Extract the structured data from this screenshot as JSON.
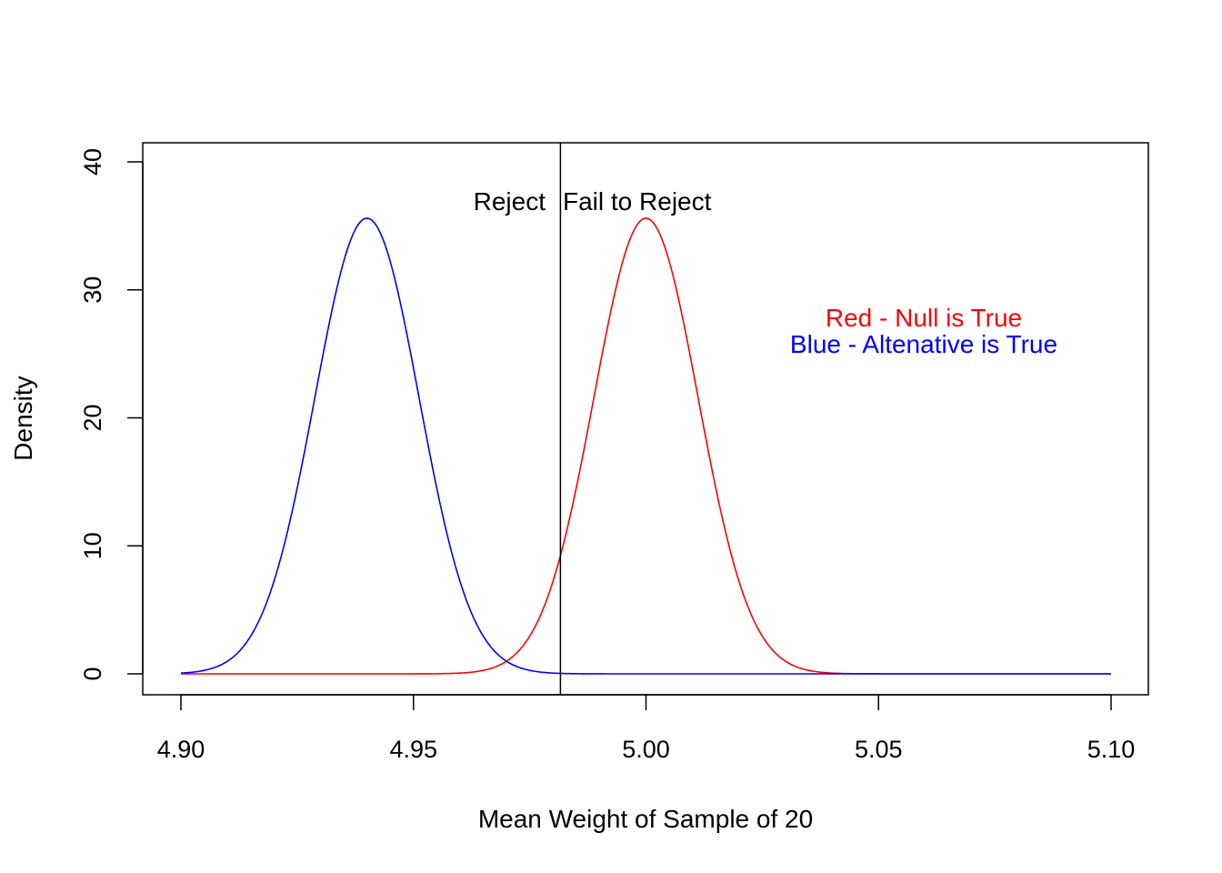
{
  "chart_data": {
    "type": "line",
    "title": "",
    "xlabel": "Mean Weight of Sample of 20",
    "ylabel": "Density",
    "xlim": [
      4.9,
      5.1
    ],
    "ylim": [
      0,
      40
    ],
    "x_ticks": [
      4.9,
      4.95,
      5.0,
      5.05,
      5.1
    ],
    "x_tick_labels": [
      "4.90",
      "4.95",
      "5.00",
      "5.05",
      "5.10"
    ],
    "y_ticks": [
      0,
      10,
      20,
      30,
      40
    ],
    "y_tick_labels": [
      "0",
      "10",
      "20",
      "30",
      "40"
    ],
    "grid": false,
    "series": [
      {
        "name": "Null is True",
        "color": "#ff0000",
        "distribution": "normal",
        "mean": 5.0,
        "sd": 0.0112,
        "peak_density": 35.6,
        "x_range": [
          4.9,
          5.1
        ]
      },
      {
        "name": "Altenative is True",
        "color": "#0000ff",
        "distribution": "normal",
        "mean": 4.94,
        "sd": 0.0112,
        "peak_density": 35.6,
        "x_range": [
          4.9,
          5.1
        ]
      }
    ],
    "reference_lines": [
      {
        "orientation": "vertical",
        "x": 4.9816,
        "color": "#000000"
      }
    ],
    "annotations": [
      {
        "text": "Reject",
        "color": "#000000"
      },
      {
        "text": "Fail to Reject",
        "color": "#000000"
      },
      {
        "text": "Red - Null is True",
        "color": "#ff0000"
      },
      {
        "text": "Blue - Altenative is True",
        "color": "#0000ff"
      }
    ]
  }
}
